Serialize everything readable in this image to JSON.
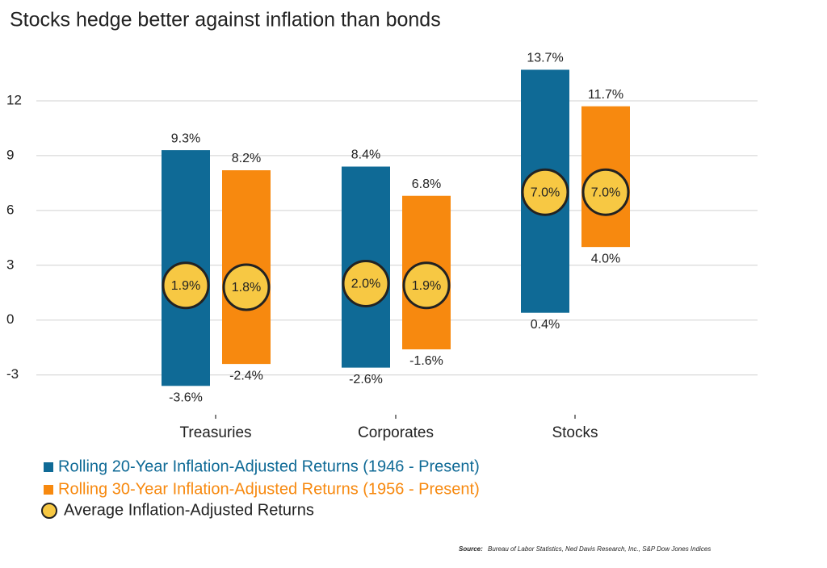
{
  "chart_data": {
    "type": "range-bar",
    "title": "Stocks hedge better against inflation than bonds",
    "categories": [
      "Treasuries",
      "Corporates",
      "Stocks"
    ],
    "series": [
      {
        "name": "Rolling 20-Year Inflation-Adjusted Returns (1946 - Present)",
        "color": "#0f6a96",
        "high": [
          9.3,
          8.4,
          13.7
        ],
        "low": [
          -3.6,
          -2.6,
          0.4
        ],
        "average": [
          1.9,
          2.0,
          7.0
        ],
        "high_labels": [
          "9.3%",
          "8.4%",
          "13.7%"
        ],
        "low_labels": [
          "-3.6%",
          "-2.6%",
          "0.4%"
        ],
        "average_labels": [
          "1.9%",
          "2.0%",
          "7.0%"
        ]
      },
      {
        "name": "Rolling 30-Year Inflation-Adjusted Returns (1956 - Present)",
        "color": "#f7890f",
        "high": [
          8.2,
          6.8,
          11.7
        ],
        "low": [
          -2.4,
          -1.6,
          4.0
        ],
        "average": [
          1.8,
          1.9,
          7.0
        ],
        "high_labels": [
          "8.2%",
          "6.8%",
          "11.7%"
        ],
        "low_labels": [
          "-2.4%",
          "-1.6%",
          "4.0%"
        ],
        "average_labels": [
          "1.8%",
          "1.9%",
          "7.0%"
        ]
      }
    ],
    "average_name": "Average Inflation-Adjusted Returns",
    "average_color": "#f7c843",
    "ylim": [
      -5,
      15
    ],
    "yticks": [
      -3,
      0,
      3,
      6,
      9,
      12
    ],
    "grid": true,
    "source_label": "Source:",
    "source": "Bureau of Labor Statistics, Ned Davis Research, Inc., S&P Dow Jones Indices"
  }
}
